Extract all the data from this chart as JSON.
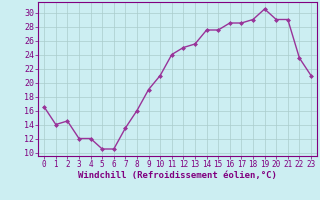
{
  "x": [
    0,
    1,
    2,
    3,
    4,
    5,
    6,
    7,
    8,
    9,
    10,
    11,
    12,
    13,
    14,
    15,
    16,
    17,
    18,
    19,
    20,
    21,
    22,
    23
  ],
  "y": [
    16.5,
    14.0,
    14.5,
    12.0,
    12.0,
    10.5,
    10.5,
    13.5,
    16.0,
    19.0,
    21.0,
    24.0,
    25.0,
    25.5,
    27.5,
    27.5,
    28.5,
    28.5,
    29.0,
    30.5,
    29.0,
    29.0,
    23.5,
    21.0
  ],
  "line_color": "#993399",
  "marker": "D",
  "marker_size": 2.0,
  "linewidth": 1.0,
  "xlabel": "Windchill (Refroidissement éolien,°C)",
  "xlabel_fontsize": 6.5,
  "ylabel_ticks": [
    10,
    12,
    14,
    16,
    18,
    20,
    22,
    24,
    26,
    28,
    30
  ],
  "ylim": [
    9.5,
    31.5
  ],
  "xlim": [
    -0.5,
    23.5
  ],
  "xtick_labels": [
    "0",
    "1",
    "2",
    "3",
    "4",
    "5",
    "6",
    "7",
    "8",
    "9",
    "10",
    "11",
    "12",
    "13",
    "14",
    "15",
    "16",
    "17",
    "18",
    "19",
    "20",
    "21",
    "22",
    "23"
  ],
  "bg_color": "#cceef2",
  "grid_color": "#aacccc",
  "tick_color": "#800080",
  "tick_fontsize": 5.5,
  "ytick_fontsize": 6.0
}
